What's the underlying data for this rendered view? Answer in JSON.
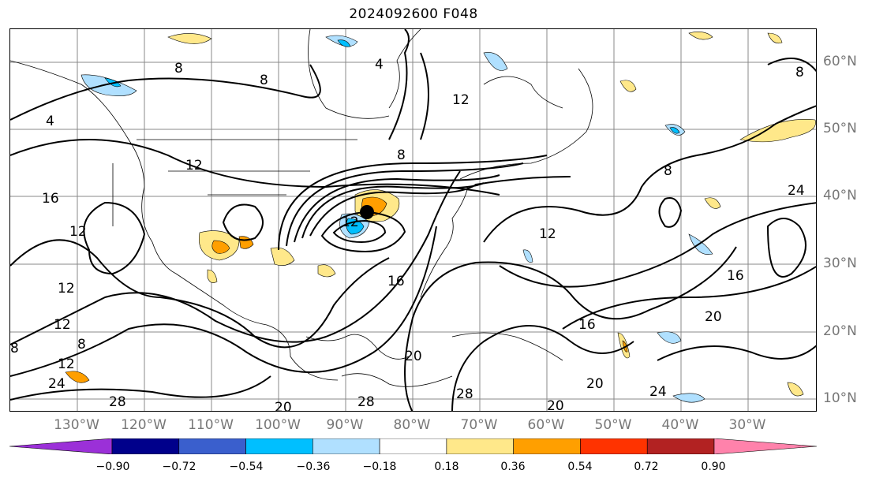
{
  "title": "2024092600 F048",
  "latitude_labels": [
    "60°N",
    "50°N",
    "40°N",
    "30°N",
    "20°N",
    "10°N"
  ],
  "longitude_labels": [
    "130°W",
    "120°W",
    "110°W",
    "100°W",
    "90°W",
    "80°W",
    "70°W",
    "60°W",
    "50°W",
    "40°W",
    "30°W"
  ],
  "contour_labels": [
    "4",
    "8",
    "12",
    "16",
    "20",
    "24",
    "28"
  ],
  "colorbar": {
    "ticks": [
      "−0.90",
      "−0.72",
      "−0.54",
      "−0.36",
      "−0.18",
      "0.18",
      "0.36",
      "0.54",
      "0.72",
      "0.90"
    ],
    "colors": [
      "#9b30d8",
      "#00008b",
      "#3a5fcd",
      "#00bfff",
      "#b0e0ff",
      "#ffffff",
      "#ffe88a",
      "#ff9f00",
      "#ff3300",
      "#b22222",
      "#ff82ab"
    ]
  }
}
